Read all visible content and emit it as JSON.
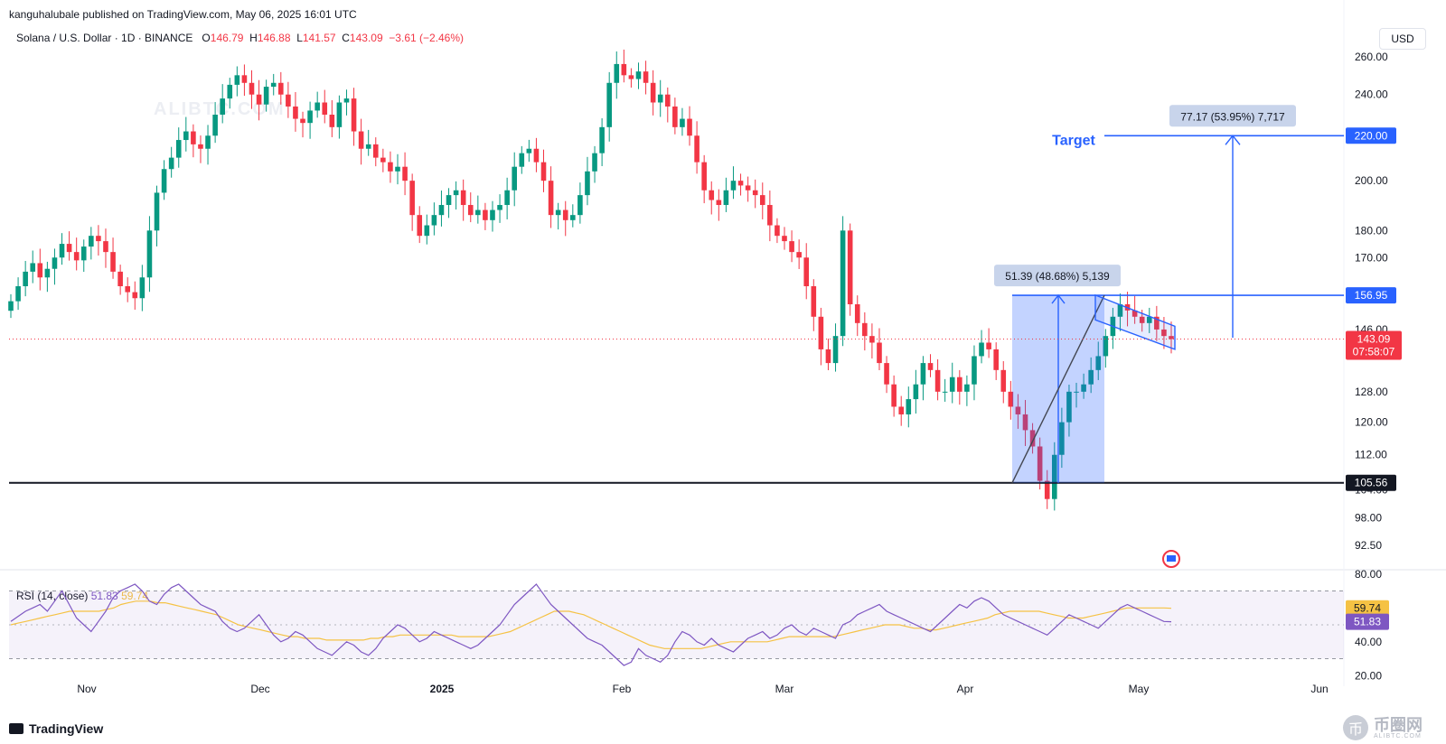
{
  "publisher": "kanguhalubale published on TradingView.com, May 06, 2025 16:01 UTC",
  "legend": {
    "symbol": "Solana / U.S. Dollar · 1D · BINANCE",
    "o_label": "O",
    "o": "146.79",
    "h_label": "H",
    "h": "146.88",
    "l_label": "L",
    "l": "141.57",
    "c_label": "C",
    "c": "143.09",
    "change": "−3.61 (−2.46%)"
  },
  "rsi_legend": {
    "label": "RSI (14, close)",
    "rsi": "51.83",
    "ma": "59.74"
  },
  "currency": "USD",
  "brand": "TradingView",
  "watermark": {
    "center": "ALIBTC.COM",
    "corner_title": "币圈网",
    "corner_sub": "ALIBTC.COM",
    "coin_glyph": "币"
  },
  "colors": {
    "up": "#089981",
    "down": "#f23645",
    "accent": "#2962ff",
    "rsi_line": "#7e57c2",
    "rsi_ma": "#f5c244"
  },
  "chart_data": [
    {
      "type": "candlestick",
      "title": "Solana / U.S. Dollar · 1D · BINANCE",
      "y_scale": "log",
      "ylim": [
        88,
        280
      ],
      "y_ticks": [
        "260.00",
        "240.00",
        "220.00",
        "200.00",
        "180.00",
        "170.00",
        "146.00",
        "128.00",
        "120.00",
        "112.00",
        "104.00",
        "98.00",
        "92.50"
      ],
      "x_ticks": [
        "Nov",
        "Dec",
        "2025",
        "Feb",
        "Mar",
        "Apr",
        "May",
        "Jun"
      ],
      "ohlc_close_path": [
        155,
        160,
        165,
        168,
        163,
        166,
        170,
        175,
        172,
        169,
        174,
        178,
        176,
        172,
        165,
        160,
        158,
        156,
        163,
        180,
        195,
        205,
        210,
        218,
        222,
        216,
        214,
        220,
        230,
        238,
        245,
        250,
        246,
        240,
        235,
        244,
        246,
        240,
        234,
        228,
        226,
        232,
        236,
        230,
        224,
        236,
        238,
        222,
        214,
        216,
        210,
        208,
        204,
        206,
        200,
        186,
        178,
        182,
        186,
        190,
        194,
        196,
        190,
        186,
        188,
        184,
        188,
        190,
        196,
        206,
        212,
        214,
        208,
        200,
        186,
        188,
        184,
        186,
        194,
        204,
        212,
        224,
        246,
        256,
        250,
        248,
        252,
        246,
        236,
        240,
        234,
        224,
        228,
        220,
        208,
        196,
        192,
        190,
        196,
        200,
        198,
        196,
        194,
        190,
        182,
        178,
        176,
        172,
        170,
        160,
        150,
        140,
        136,
        144,
        180,
        154,
        148,
        144,
        142,
        136,
        130,
        124,
        122,
        126,
        130,
        136,
        134,
        128,
        128,
        132,
        128,
        130,
        138,
        142,
        140,
        134,
        128,
        124,
        122,
        118,
        114,
        106,
        102,
        112,
        120,
        128,
        128,
        130,
        134,
        138,
        144,
        150,
        154,
        152,
        150,
        148,
        150,
        146,
        144,
        143.09
      ],
      "last_price": "143.09",
      "countdown": "07:58:07",
      "levels": [
        {
          "price": 105.56,
          "label": "105.56",
          "color": "#131722"
        },
        {
          "price": 156.95,
          "label": "156.95",
          "color": "#2962ff"
        },
        {
          "price": 220.0,
          "label": "220.00",
          "color": "#2962ff"
        }
      ],
      "annotations": [
        {
          "text": "51.39 (48.68%) 5,139"
        },
        {
          "text": "77.17 (53.95%) 7,717"
        },
        {
          "text": "Target"
        }
      ]
    },
    {
      "type": "line",
      "title": "RSI (14, close)",
      "ylim": [
        18,
        82
      ],
      "y_ticks": [
        "80.00",
        "40.00",
        "20.00"
      ],
      "series": [
        {
          "name": "RSI",
          "last": "51.83"
        },
        {
          "name": "RSI MA",
          "last": "59.74"
        }
      ],
      "rsi_path": [
        52,
        55,
        58,
        60,
        62,
        58,
        64,
        70,
        62,
        54,
        50,
        46,
        52,
        58,
        66,
        70,
        72,
        74,
        70,
        64,
        62,
        68,
        72,
        74,
        70,
        66,
        62,
        60,
        58,
        52,
        48,
        46,
        48,
        52,
        56,
        50,
        44,
        40,
        42,
        46,
        44,
        40,
        36,
        34,
        32,
        36,
        40,
        38,
        34,
        32,
        36,
        42,
        46,
        50,
        48,
        44,
        40,
        42,
        46,
        44,
        42,
        40,
        38,
        36,
        38,
        42,
        46,
        50,
        56,
        62,
        66,
        70,
        74,
        68,
        62,
        58,
        54,
        50,
        46,
        42,
        40,
        38,
        34,
        30,
        26,
        28,
        36,
        32,
        30,
        28,
        32,
        40,
        46,
        44,
        40,
        38,
        42,
        38,
        36,
        34,
        38,
        42,
        44,
        46,
        42,
        44,
        48,
        50,
        46,
        44,
        48,
        46,
        44,
        42,
        50,
        52,
        56,
        58,
        60,
        62,
        58,
        56,
        54,
        52,
        50,
        48,
        46,
        50,
        54,
        58,
        62,
        60,
        64,
        66,
        64,
        60,
        56,
        54,
        52,
        50,
        48,
        46,
        44,
        48,
        52,
        56,
        54,
        52,
        50,
        48,
        52,
        56,
        60,
        62,
        60,
        58,
        56,
        54,
        52,
        51.83
      ],
      "ma_path": [
        50,
        51,
        52,
        53,
        54,
        55,
        56,
        57,
        58,
        58,
        58,
        58,
        58,
        59,
        60,
        62,
        63,
        64,
        64,
        64,
        63,
        63,
        62,
        61,
        60,
        59,
        58,
        57,
        56,
        54,
        52,
        50,
        49,
        48,
        47,
        46,
        45,
        44,
        43,
        43,
        42,
        42,
        42,
        41,
        41,
        41,
        41,
        41,
        41,
        42,
        42,
        43,
        43,
        44,
        44,
        44,
        44,
        44,
        44,
        44,
        44,
        43,
        43,
        43,
        43,
        43,
        44,
        45,
        46,
        48,
        50,
        52,
        54,
        56,
        58,
        58,
        58,
        57,
        56,
        54,
        52,
        50,
        48,
        46,
        44,
        42,
        40,
        38,
        37,
        36,
        36,
        36,
        36,
        36,
        36,
        37,
        38,
        39,
        40,
        40,
        40,
        40,
        40,
        40,
        41,
        42,
        43,
        43,
        43,
        43,
        43,
        43,
        43,
        44,
        45,
        46,
        47,
        48,
        49,
        50,
        50,
        50,
        49,
        48,
        48,
        47,
        47,
        48,
        49,
        50,
        51,
        52,
        53,
        54,
        56,
        57,
        58,
        58,
        58,
        58,
        58,
        57,
        56,
        55,
        54,
        54,
        54,
        55,
        56,
        57,
        58,
        59,
        60,
        60,
        60,
        60,
        60,
        60,
        59.74
      ]
    }
  ]
}
